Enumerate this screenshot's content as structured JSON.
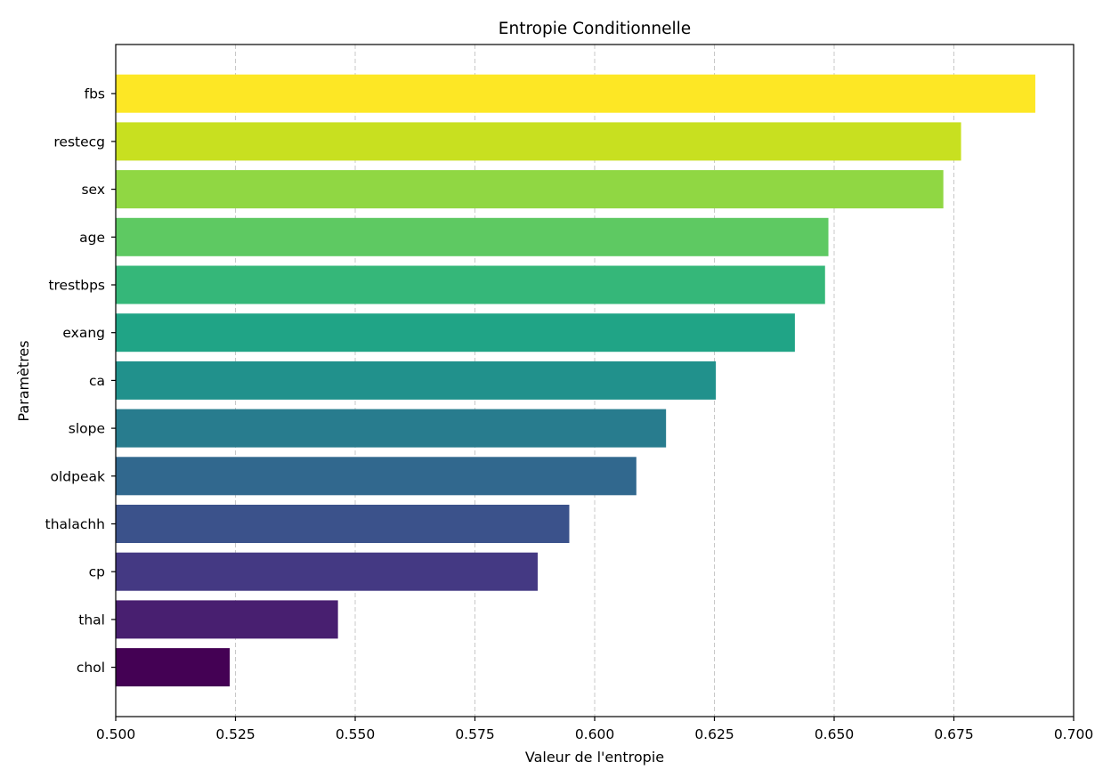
{
  "chart_data": {
    "type": "bar",
    "orientation": "horizontal",
    "title": "Entropie Conditionnelle",
    "xlabel": "Valeur de l'entropie",
    "ylabel": "Paramètres",
    "xlim": [
      0.5,
      0.7
    ],
    "xticks": [
      "0.500",
      "0.525",
      "0.550",
      "0.575",
      "0.600",
      "0.625",
      "0.650",
      "0.675",
      "0.700"
    ],
    "grid": "x-axis dashed",
    "colormap": "viridis",
    "categories": [
      "fbs",
      "restecg",
      "sex",
      "age",
      "trestbps",
      "exang",
      "ca",
      "slope",
      "oldpeak",
      "thalachh",
      "cp",
      "thal",
      "chol"
    ],
    "values": [
      0.692,
      0.6765,
      0.6728,
      0.6488,
      0.6481,
      0.6418,
      0.6253,
      0.6149,
      0.6087,
      0.5947,
      0.5881,
      0.5464,
      0.5238
    ],
    "colors": [
      "#fde725",
      "#c8e020",
      "#90d743",
      "#5ec962",
      "#35b779",
      "#20a486",
      "#21918c",
      "#287c8e",
      "#31688e",
      "#3b528b",
      "#443983",
      "#481f70",
      "#440154"
    ]
  }
}
